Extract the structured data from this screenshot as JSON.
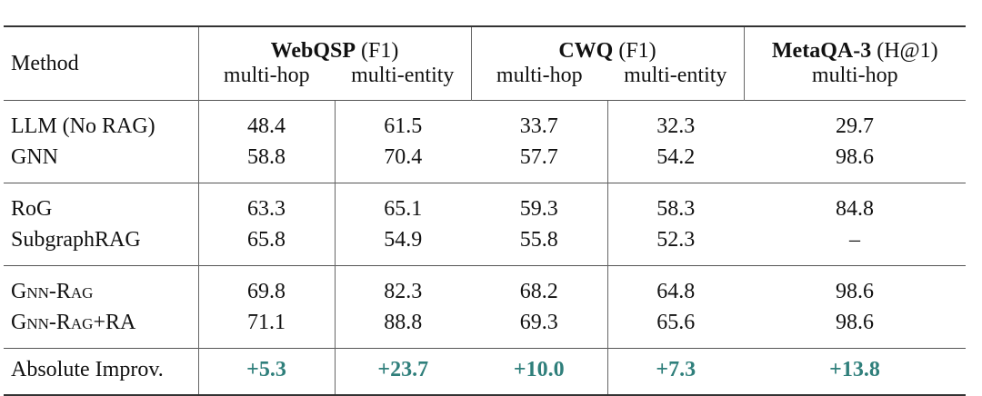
{
  "table": {
    "header": {
      "method": "Method",
      "groups": [
        {
          "name": "WebQSP",
          "metric": "(F1)",
          "columns": [
            "multi-hop",
            "multi-entity"
          ]
        },
        {
          "name": "CWQ",
          "metric": "(F1)",
          "columns": [
            "multi-hop",
            "multi-entity"
          ]
        },
        {
          "name": "MetaQA-3",
          "metric": "(H@1)",
          "columns": [
            "multi-hop"
          ]
        }
      ]
    },
    "sections": [
      [
        {
          "method": "LLM (No RAG)",
          "values": [
            "48.4",
            "61.5",
            "33.7",
            "32.3",
            "29.7"
          ]
        },
        {
          "method": "GNN",
          "values": [
            "58.8",
            "70.4",
            "57.7",
            "54.2",
            "98.6"
          ]
        }
      ],
      [
        {
          "method": "RoG",
          "values": [
            "63.3",
            "65.1",
            "59.3",
            "58.3",
            "84.8"
          ]
        },
        {
          "method": "SubgraphRAG",
          "values": [
            "65.8",
            "54.9",
            "55.8",
            "52.3",
            "–"
          ]
        }
      ],
      [
        {
          "method": "Gnn-Rag",
          "values": [
            "69.8",
            "82.3",
            "68.2",
            "64.8",
            "98.6"
          ]
        },
        {
          "method": "Gnn-Rag+RA",
          "values": [
            "71.1",
            "88.8",
            "69.3",
            "65.6",
            "98.6"
          ]
        }
      ]
    ],
    "footer": {
      "method": "Absolute Improv.",
      "values": [
        "+5.3",
        "+23.7",
        "+10.0",
        "+7.3",
        "+13.8"
      ]
    }
  }
}
